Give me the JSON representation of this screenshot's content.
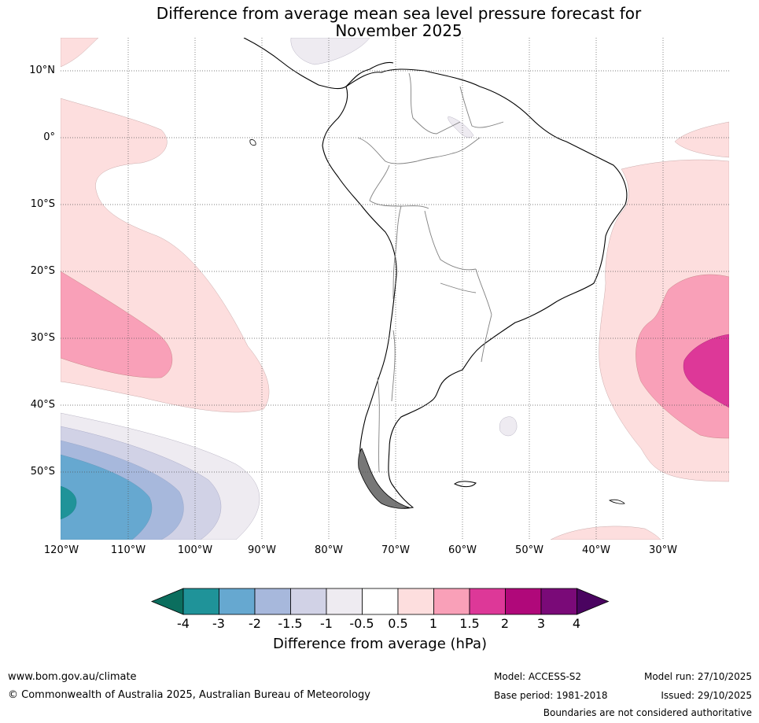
{
  "title": {
    "line1": "Difference from average mean sea level pressure forecast for",
    "line2": "November 2025"
  },
  "latitude_labels": [
    "10°N",
    "0°",
    "10°S",
    "20°S",
    "30°S",
    "40°S",
    "50°S"
  ],
  "longitude_labels": [
    "120°W",
    "110°W",
    "100°W",
    "90°W",
    "80°W",
    "70°W",
    "60°W",
    "50°W",
    "40°W",
    "30°W"
  ],
  "colorbar": {
    "ticks": [
      "-4",
      "-3",
      "-2",
      "-1.5",
      "-1",
      "-0.5",
      "0.5",
      "1",
      "1.5",
      "2",
      "3",
      "4"
    ],
    "colors": [
      "#0b6e5e",
      "#1f9399",
      "#66a8d0",
      "#a7b8dc",
      "#d1d2e6",
      "#eeebf1",
      "#ffffff",
      "#fddede",
      "#f9a0b8",
      "#dd3898",
      "#b0087a",
      "#7a0a78",
      "#4a0460"
    ],
    "label": "Difference from average (hPa)"
  },
  "footer": {
    "website": "www.bom.gov.au/climate",
    "copyright": "© Commonwealth of Australia 2025, Australian Bureau of Meteorology",
    "model": "Model: ACCESS-S2",
    "base_period": "Base period: 1981-2018",
    "model_run": "Model run: 27/10/2025",
    "issued": "Issued: 29/10/2025",
    "disclaimer": "Boundaries are not considered authoritative"
  }
}
